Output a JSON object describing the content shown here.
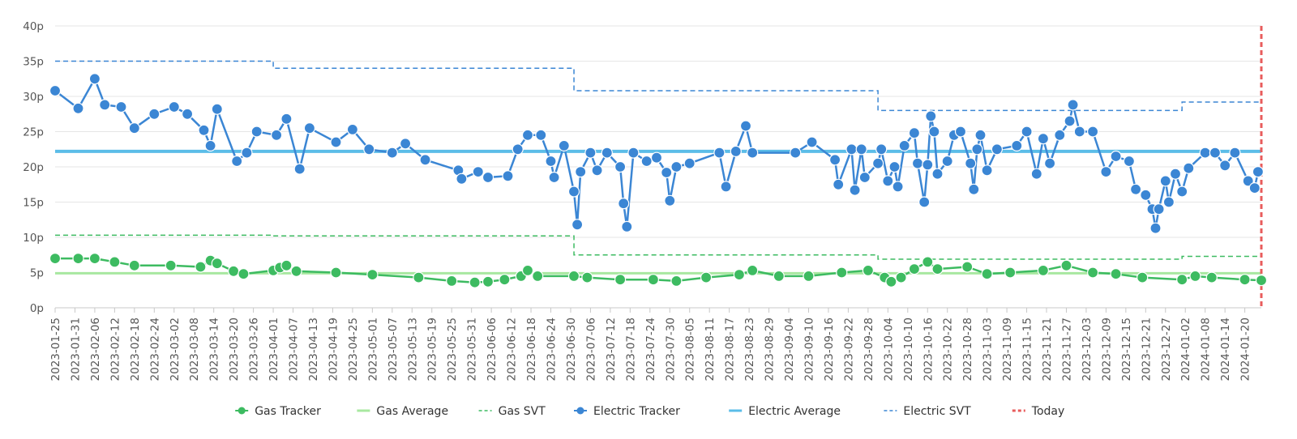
{
  "chart_data": {
    "type": "line",
    "title": "",
    "xlabel": "",
    "ylabel": "",
    "y_unit_suffix": "p",
    "ylim": [
      0,
      40
    ],
    "y_ticks": [
      0,
      5,
      10,
      15,
      20,
      25,
      30,
      35,
      40
    ],
    "x_range": [
      "2023-01-25",
      "2024-01-25"
    ],
    "x_tick_labels": [
      "2023-01-25",
      "2023-01-31",
      "2023-02-06",
      "2023-02-12",
      "2023-02-18",
      "2023-02-24",
      "2023-03-02",
      "2023-03-08",
      "2023-03-14",
      "2023-03-20",
      "2023-03-26",
      "2023-04-01",
      "2023-04-07",
      "2023-04-13",
      "2023-04-19",
      "2023-04-25",
      "2023-05-01",
      "2023-05-07",
      "2023-05-13",
      "2023-05-19",
      "2023-05-25",
      "2023-05-31",
      "2023-06-06",
      "2023-06-12",
      "2023-06-18",
      "2023-06-24",
      "2023-06-30",
      "2023-07-06",
      "2023-07-12",
      "2023-07-18",
      "2023-07-24",
      "2023-07-30",
      "2023-08-05",
      "2023-08-11",
      "2023-08-17",
      "2023-08-23",
      "2023-08-29",
      "2023-09-04",
      "2023-09-10",
      "2023-09-16",
      "2023-09-22",
      "2023-09-28",
      "2023-10-04",
      "2023-10-10",
      "2023-10-16",
      "2023-10-22",
      "2023-10-28",
      "2023-11-03",
      "2023-11-09",
      "2023-11-15",
      "2023-11-21",
      "2023-11-27",
      "2023-12-03",
      "2023-12-09",
      "2023-12-15",
      "2023-12-21",
      "2023-12-27",
      "2024-01-02",
      "2024-01-08",
      "2024-01-14",
      "2024-01-20"
    ],
    "grid": true,
    "legend_position": "bottom",
    "electric_tracker_points": [
      [
        "2023-01-25",
        30.8
      ],
      [
        "2023-02-01",
        28.3
      ],
      [
        "2023-02-06",
        32.5
      ],
      [
        "2023-02-09",
        28.8
      ],
      [
        "2023-02-14",
        28.5
      ],
      [
        "2023-02-18",
        25.5
      ],
      [
        "2023-02-24",
        27.5
      ],
      [
        "2023-03-02",
        28.5
      ],
      [
        "2023-03-06",
        27.5
      ],
      [
        "2023-03-11",
        25.2
      ],
      [
        "2023-03-13",
        23.0
      ],
      [
        "2023-03-15",
        28.2
      ],
      [
        "2023-03-21",
        20.8
      ],
      [
        "2023-03-24",
        22.0
      ],
      [
        "2023-03-27",
        25.0
      ],
      [
        "2023-04-02",
        24.5
      ],
      [
        "2023-04-05",
        26.8
      ],
      [
        "2023-04-09",
        19.7
      ],
      [
        "2023-04-12",
        25.5
      ],
      [
        "2023-04-20",
        23.5
      ],
      [
        "2023-04-25",
        25.3
      ],
      [
        "2023-04-30",
        22.5
      ],
      [
        "2023-05-07",
        22.0
      ],
      [
        "2023-05-11",
        23.3
      ],
      [
        "2023-05-17",
        21.0
      ],
      [
        "2023-05-27",
        19.5
      ],
      [
        "2023-05-28",
        18.3
      ],
      [
        "2023-06-02",
        19.3
      ],
      [
        "2023-06-05",
        18.5
      ],
      [
        "2023-06-11",
        18.7
      ],
      [
        "2023-06-14",
        22.5
      ],
      [
        "2023-06-17",
        24.5
      ],
      [
        "2023-06-21",
        24.5
      ],
      [
        "2023-06-24",
        20.8
      ],
      [
        "2023-06-25",
        18.5
      ],
      [
        "2023-06-28",
        23.0
      ],
      [
        "2023-07-01",
        16.5
      ],
      [
        "2023-07-02",
        11.8
      ],
      [
        "2023-07-03",
        19.3
      ],
      [
        "2023-07-06",
        22.0
      ],
      [
        "2023-07-08",
        19.5
      ],
      [
        "2023-07-11",
        22.0
      ],
      [
        "2023-07-15",
        20.0
      ],
      [
        "2023-07-16",
        14.8
      ],
      [
        "2023-07-17",
        11.5
      ],
      [
        "2023-07-19",
        22.0
      ],
      [
        "2023-07-23",
        20.8
      ],
      [
        "2023-07-26",
        21.3
      ],
      [
        "2023-07-29",
        19.2
      ],
      [
        "2023-07-30",
        15.2
      ],
      [
        "2023-08-01",
        20.0
      ],
      [
        "2023-08-05",
        20.5
      ],
      [
        "2023-08-14",
        22.0
      ],
      [
        "2023-08-16",
        17.2
      ],
      [
        "2023-08-19",
        22.2
      ],
      [
        "2023-08-22",
        25.8
      ],
      [
        "2023-08-24",
        22.0
      ],
      [
        "2023-09-06",
        22.0
      ],
      [
        "2023-09-11",
        23.5
      ],
      [
        "2023-09-18",
        21.0
      ],
      [
        "2023-09-19",
        17.5
      ],
      [
        "2023-09-23",
        22.5
      ],
      [
        "2023-09-24",
        16.7
      ],
      [
        "2023-09-26",
        22.5
      ],
      [
        "2023-09-27",
        18.5
      ],
      [
        "2023-10-01",
        20.5
      ],
      [
        "2023-10-02",
        22.5
      ],
      [
        "2023-10-04",
        18.0
      ],
      [
        "2023-10-06",
        20.0
      ],
      [
        "2023-10-07",
        17.2
      ],
      [
        "2023-10-09",
        23.0
      ],
      [
        "2023-10-12",
        24.8
      ],
      [
        "2023-10-13",
        20.5
      ],
      [
        "2023-10-15",
        15.0
      ],
      [
        "2023-10-16",
        20.3
      ],
      [
        "2023-10-17",
        27.2
      ],
      [
        "2023-10-18",
        25.0
      ],
      [
        "2023-10-19",
        19.0
      ],
      [
        "2023-10-22",
        20.8
      ],
      [
        "2023-10-24",
        24.5
      ],
      [
        "2023-10-26",
        25.0
      ],
      [
        "2023-10-29",
        20.5
      ],
      [
        "2023-10-30",
        16.8
      ],
      [
        "2023-10-31",
        22.5
      ],
      [
        "2023-11-01",
        24.5
      ],
      [
        "2023-11-03",
        19.5
      ],
      [
        "2023-11-06",
        22.5
      ],
      [
        "2023-11-12",
        23.0
      ],
      [
        "2023-11-15",
        25.0
      ],
      [
        "2023-11-18",
        19.0
      ],
      [
        "2023-11-20",
        24.0
      ],
      [
        "2023-11-22",
        20.5
      ],
      [
        "2023-11-25",
        24.5
      ],
      [
        "2023-11-28",
        26.5
      ],
      [
        "2023-11-29",
        28.8
      ],
      [
        "2023-12-01",
        25.0
      ],
      [
        "2023-12-05",
        25.0
      ],
      [
        "2023-12-09",
        19.3
      ],
      [
        "2023-12-12",
        21.5
      ],
      [
        "2023-12-16",
        20.8
      ],
      [
        "2023-12-18",
        16.8
      ],
      [
        "2023-12-21",
        16.0
      ],
      [
        "2023-12-23",
        14.0
      ],
      [
        "2023-12-24",
        11.3
      ],
      [
        "2023-12-25",
        14.0
      ],
      [
        "2023-12-27",
        18.0
      ],
      [
        "2023-12-28",
        15.0
      ],
      [
        "2023-12-30",
        19.0
      ],
      [
        "2024-01-01",
        16.5
      ],
      [
        "2024-01-03",
        19.8
      ],
      [
        "2024-01-08",
        22.0
      ],
      [
        "2024-01-11",
        22.0
      ],
      [
        "2024-01-14",
        20.2
      ],
      [
        "2024-01-17",
        22.0
      ],
      [
        "2024-01-21",
        18.0
      ],
      [
        "2024-01-23",
        17.0
      ],
      [
        "2024-01-24",
        19.3
      ]
    ],
    "gas_tracker_points": [
      [
        "2023-01-25",
        7.0
      ],
      [
        "2023-02-01",
        7.0
      ],
      [
        "2023-02-06",
        7.0
      ],
      [
        "2023-02-12",
        6.5
      ],
      [
        "2023-02-18",
        6.0
      ],
      [
        "2023-03-01",
        6.0
      ],
      [
        "2023-03-10",
        5.8
      ],
      [
        "2023-03-13",
        6.7
      ],
      [
        "2023-03-15",
        6.3
      ],
      [
        "2023-03-20",
        5.2
      ],
      [
        "2023-03-23",
        4.8
      ],
      [
        "2023-04-01",
        5.3
      ],
      [
        "2023-04-03",
        5.7
      ],
      [
        "2023-04-05",
        6.0
      ],
      [
        "2023-04-08",
        5.2
      ],
      [
        "2023-04-20",
        5.0
      ],
      [
        "2023-05-01",
        4.7
      ],
      [
        "2023-05-15",
        4.3
      ],
      [
        "2023-05-25",
        3.8
      ],
      [
        "2023-06-01",
        3.6
      ],
      [
        "2023-06-05",
        3.7
      ],
      [
        "2023-06-10",
        4.0
      ],
      [
        "2023-06-15",
        4.5
      ],
      [
        "2023-06-17",
        5.3
      ],
      [
        "2023-06-20",
        4.5
      ],
      [
        "2023-07-01",
        4.5
      ],
      [
        "2023-07-05",
        4.3
      ],
      [
        "2023-07-15",
        4.0
      ],
      [
        "2023-07-25",
        4.0
      ],
      [
        "2023-08-01",
        3.8
      ],
      [
        "2023-08-10",
        4.3
      ],
      [
        "2023-08-20",
        4.7
      ],
      [
        "2023-08-24",
        5.3
      ],
      [
        "2023-09-01",
        4.5
      ],
      [
        "2023-09-10",
        4.5
      ],
      [
        "2023-09-20",
        5.0
      ],
      [
        "2023-09-28",
        5.3
      ],
      [
        "2023-10-03",
        4.3
      ],
      [
        "2023-10-05",
        3.7
      ],
      [
        "2023-10-08",
        4.3
      ],
      [
        "2023-10-12",
        5.5
      ],
      [
        "2023-10-16",
        6.5
      ],
      [
        "2023-10-19",
        5.5
      ],
      [
        "2023-10-28",
        5.8
      ],
      [
        "2023-11-03",
        4.8
      ],
      [
        "2023-11-10",
        5.0
      ],
      [
        "2023-11-20",
        5.3
      ],
      [
        "2023-11-27",
        6.0
      ],
      [
        "2023-12-05",
        5.0
      ],
      [
        "2023-12-12",
        4.8
      ],
      [
        "2023-12-20",
        4.3
      ],
      [
        "2024-01-01",
        4.0
      ],
      [
        "2024-01-05",
        4.5
      ],
      [
        "2024-01-10",
        4.3
      ],
      [
        "2024-01-20",
        4.0
      ],
      [
        "2024-01-25",
        3.9
      ]
    ],
    "series": [
      {
        "name": "Gas Tracker",
        "color": "#3dbb61",
        "style": "line-with-markers"
      },
      {
        "name": "Gas Average",
        "color": "#a8e8a0",
        "style": "solid",
        "value": 4.9
      },
      {
        "name": "Gas SVT",
        "color": "#3dbb61",
        "style": "dashed",
        "steps": [
          [
            "2023-01-25",
            10.3
          ],
          [
            "2023-04-01",
            10.2
          ],
          [
            "2023-07-01",
            7.5
          ],
          [
            "2023-10-01",
            6.9
          ],
          [
            "2024-01-01",
            7.3
          ]
        ]
      },
      {
        "name": "Electric Tracker",
        "color": "#3b86d4",
        "style": "line-with-markers"
      },
      {
        "name": "Electric Average",
        "color": "#5bbde8",
        "style": "solid",
        "value": 22.2
      },
      {
        "name": "Electric SVT",
        "color": "#3b86d4",
        "style": "dashed",
        "steps": [
          [
            "2023-01-25",
            35.0
          ],
          [
            "2023-04-01",
            34.0
          ],
          [
            "2023-07-01",
            30.8
          ],
          [
            "2023-10-01",
            28.0
          ],
          [
            "2024-01-01",
            29.2
          ]
        ]
      },
      {
        "name": "Today",
        "color": "#e85c5c",
        "style": "dashed-vertical",
        "date": "2024-01-25"
      }
    ]
  }
}
